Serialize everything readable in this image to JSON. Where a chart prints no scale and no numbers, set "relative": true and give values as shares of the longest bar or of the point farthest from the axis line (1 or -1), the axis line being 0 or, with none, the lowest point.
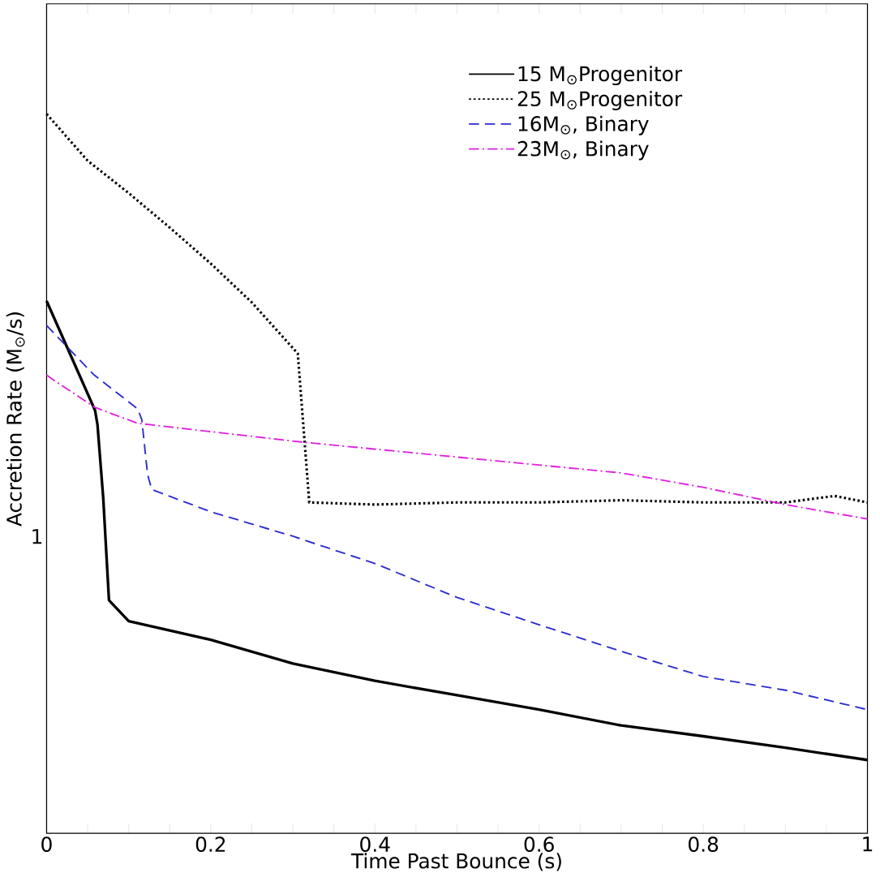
{
  "chart_data": {
    "type": "line",
    "relative": true,
    "xlabel": "Time Past Bounce (s)",
    "ylabel": "Accretion Rate (M$_{⊙}$/s)",
    "legend": "top right",
    "marker": "none",
    "annotations": [
      "1"
    ],
    "xlim": [
      0,
      1
    ],
    "xticks": [
      0,
      {
        "value": 0.05,
        "label": null
      },
      {
        "value": 0.1,
        "label": null
      },
      {
        "value": 0.15,
        "label": null
      },
      0.2,
      {
        "value": 0.25,
        "label": null
      },
      {
        "value": 0.3,
        "label": null
      },
      {
        "value": 0.35,
        "label": null
      },
      0.4,
      {
        "value": 0.45,
        "label": null
      },
      {
        "value": 0.5,
        "label": null
      },
      {
        "value": 0.55,
        "label": null
      },
      0.6,
      {
        "value": 0.65,
        "label": null
      },
      {
        "value": 0.7,
        "label": null
      },
      {
        "value": 0.75,
        "label": null
      },
      0.8,
      {
        "value": 0.85,
        "label": null
      },
      {
        "value": 0.9,
        "label": null
      },
      {
        "value": 0.95,
        "label": null
      },
      1
    ],
    "series": [
      {
        "name": "15 M$_{⊙}$Progenitor",
        "color": "#000000",
        "line_style": "solid",
        "x": [
          0,
          0.059,
          0.062,
          0.069,
          0.076,
          0.1,
          0.2,
          0.3,
          0.4,
          0.5,
          0.6,
          0.7,
          0.8,
          0.9,
          1.0
        ],
        "values": [
          0.74,
          0.588,
          0.568,
          0.466,
          0.324,
          0.295,
          0.269,
          0.236,
          0.212,
          0.192,
          0.172,
          0.15,
          0.135,
          0.119,
          0.102
        ]
      },
      {
        "name": "25 M$_{⊙}$Progenitor",
        "color": "#000000",
        "line_style": "dotted",
        "x": [
          0,
          0.05,
          0.1,
          0.15,
          0.2,
          0.25,
          0.306,
          0.32,
          0.4,
          0.5,
          0.6,
          0.7,
          0.8,
          0.9,
          0.96,
          1.0
        ],
        "values": [
          1.0,
          0.935,
          0.89,
          0.842,
          0.792,
          0.738,
          0.667,
          0.46,
          0.457,
          0.46,
          0.46,
          0.463,
          0.46,
          0.46,
          0.469,
          0.46
        ]
      },
      {
        "name": "16M$_{⊙}$, Binary",
        "color": "#2b2bd0",
        "line_style": "dashed",
        "x": [
          0,
          0.058,
          0.111,
          0.116,
          0.123,
          0.128,
          0.2,
          0.3,
          0.4,
          0.5,
          0.6,
          0.7,
          0.8,
          0.9,
          1.0
        ],
        "values": [
          0.706,
          0.637,
          0.59,
          0.575,
          0.499,
          0.478,
          0.447,
          0.413,
          0.375,
          0.328,
          0.29,
          0.253,
          0.218,
          0.199,
          0.172
        ]
      },
      {
        "name": "23M$_{⊙}$, Binary",
        "color": "#e020e0",
        "line_style": "dashdot",
        "x": [
          0,
          0.01,
          0.059,
          0.111,
          0.31,
          0.455,
          0.6,
          0.7,
          0.8,
          0.9,
          1.0
        ],
        "values": [
          0.637,
          0.629,
          0.592,
          0.57,
          0.544,
          0.528,
          0.512,
          0.501,
          0.481,
          0.457,
          0.437
        ]
      }
    ]
  }
}
